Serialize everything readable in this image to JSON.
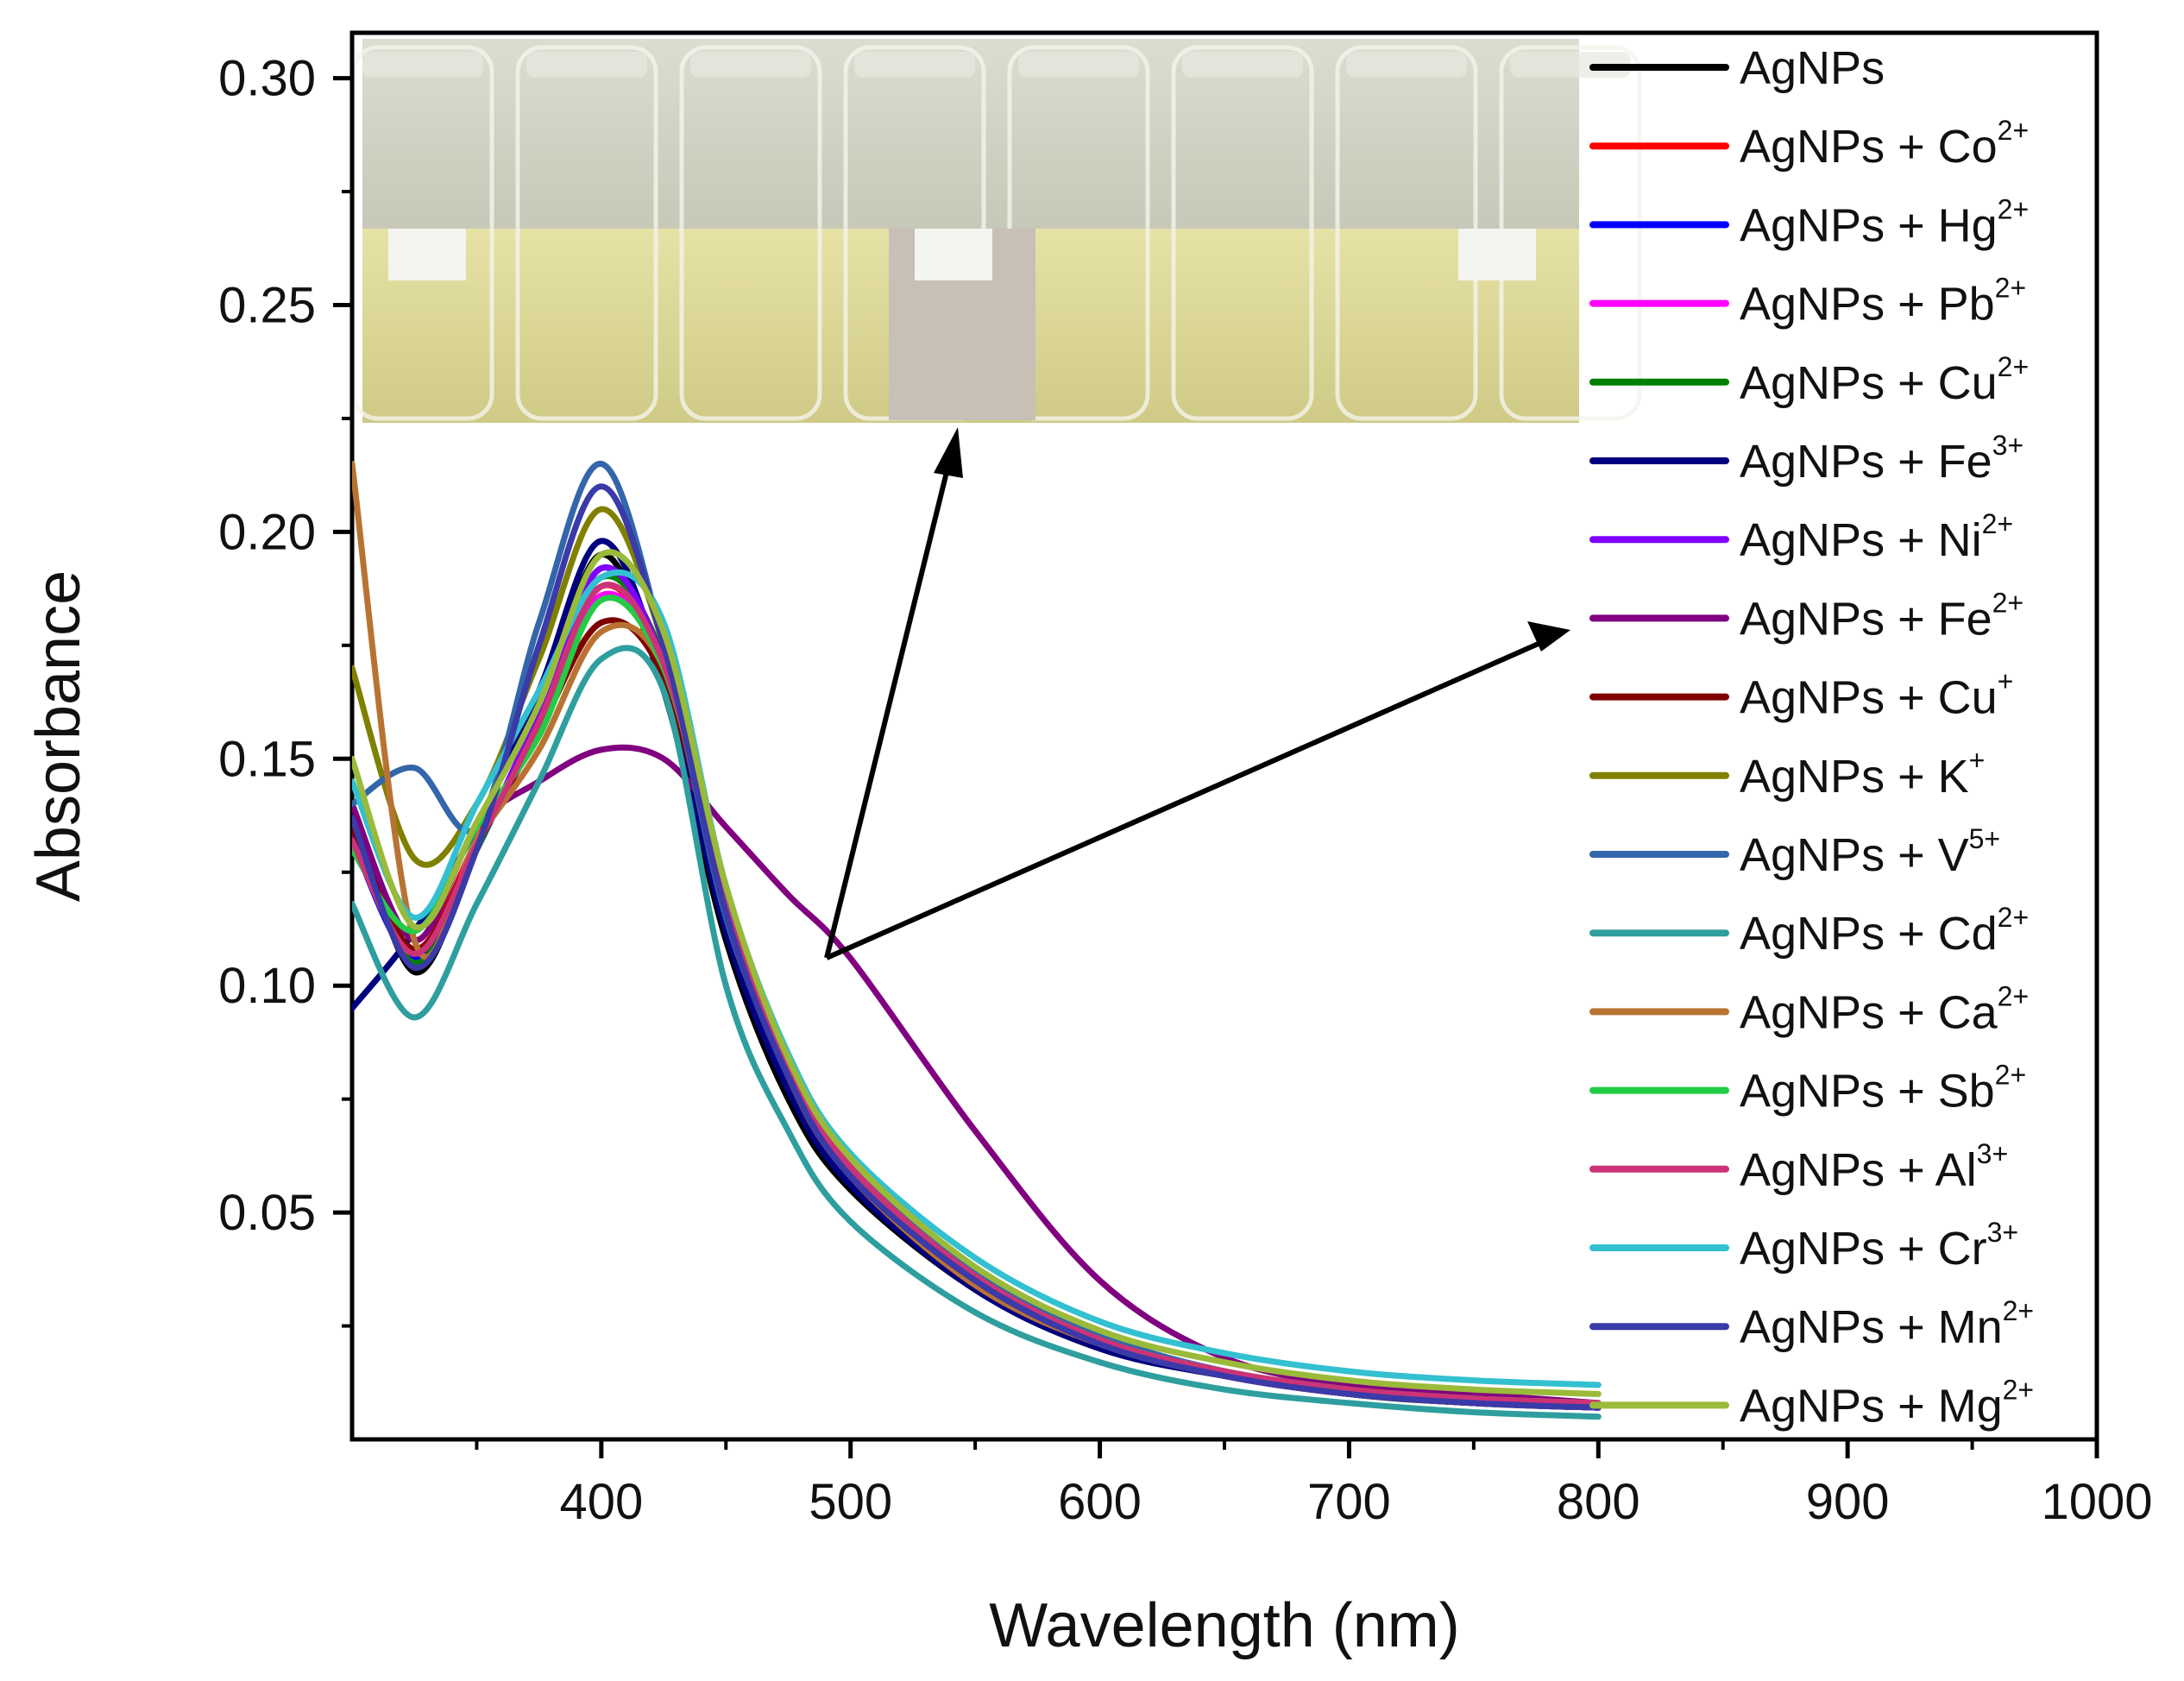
{
  "chart_data": {
    "type": "line",
    "title": "",
    "xlabel": "Wavelength (nm)",
    "ylabel": "Absorbance",
    "xlim": [
      300,
      1000
    ],
    "ylim": [
      0,
      0.31
    ],
    "xticks": [
      400,
      500,
      600,
      700,
      800,
      900,
      1000
    ],
    "xtick_labels": [
      "400",
      "500",
      "600",
      "700",
      "800",
      "900",
      "1000"
    ],
    "xminor": [
      350,
      450,
      550,
      650,
      750,
      850,
      950
    ],
    "yticks": [
      0.05,
      0.1,
      0.15,
      0.2,
      0.25,
      0.3
    ],
    "ytick_labels": [
      "0.05",
      "0.10",
      "0.15",
      "0.20",
      "0.25",
      "0.30"
    ],
    "yminor": [
      0.025,
      0.075,
      0.125,
      0.175,
      0.225,
      0.275
    ],
    "x": [
      300,
      325,
      350,
      375,
      400,
      425,
      450,
      475,
      500,
      550,
      600,
      650,
      700,
      750,
      800
    ],
    "series": [
      {
        "name": "AgNPs",
        "ion": "",
        "sup": "",
        "color": "#000000",
        "values": [
          0.14,
          0.103,
          0.13,
          0.16,
          0.195,
          0.165,
          0.11,
          0.075,
          0.055,
          0.033,
          0.02,
          0.014,
          0.01,
          0.008,
          0.007
        ]
      },
      {
        "name": "AgNPs + Co",
        "ion": "Co",
        "sup": "2+",
        "color": "#ff0000",
        "values": [
          0.135,
          0.108,
          0.132,
          0.158,
          0.188,
          0.17,
          0.118,
          0.08,
          0.058,
          0.034,
          0.021,
          0.014,
          0.01,
          0.008,
          0.007
        ]
      },
      {
        "name": "AgNPs + Hg",
        "ion": "Hg",
        "sup": "2+",
        "color": "#0000ff",
        "values": [
          0.132,
          0.106,
          0.13,
          0.16,
          0.192,
          0.17,
          0.116,
          0.079,
          0.057,
          0.034,
          0.021,
          0.014,
          0.01,
          0.008,
          0.007
        ]
      },
      {
        "name": "AgNPs + Pb",
        "ion": "Pb",
        "sup": "2+",
        "color": "#ff00ff",
        "values": [
          0.134,
          0.108,
          0.131,
          0.158,
          0.186,
          0.17,
          0.118,
          0.08,
          0.058,
          0.035,
          0.021,
          0.014,
          0.01,
          0.008,
          0.007
        ]
      },
      {
        "name": "AgNPs + Cu",
        "ion": "Cu",
        "sup": "2+",
        "color": "#008000",
        "values": [
          0.135,
          0.105,
          0.13,
          0.16,
          0.19,
          0.172,
          0.118,
          0.081,
          0.059,
          0.035,
          0.022,
          0.015,
          0.01,
          0.008,
          0.007
        ]
      },
      {
        "name": "AgNPs + Fe",
        "ion": "Fe",
        "sup": "3+",
        "color": "#000080",
        "values": [
          0.095,
          0.112,
          0.135,
          0.165,
          0.198,
          0.168,
          0.112,
          0.077,
          0.056,
          0.033,
          0.02,
          0.014,
          0.01,
          0.008,
          0.007
        ]
      },
      {
        "name": "AgNPs + Ni",
        "ion": "Ni",
        "sup": "2+",
        "color": "#8000ff",
        "values": [
          0.133,
          0.107,
          0.131,
          0.16,
          0.192,
          0.171,
          0.117,
          0.08,
          0.058,
          0.034,
          0.021,
          0.014,
          0.01,
          0.008,
          0.007
        ]
      },
      {
        "name": "AgNPs + Fe",
        "ion": "Fe",
        "sup": "2+",
        "color": "#800080",
        "values": [
          0.14,
          0.11,
          0.135,
          0.145,
          0.152,
          0.15,
          0.135,
          0.12,
          0.106,
          0.068,
          0.035,
          0.018,
          0.012,
          0.01,
          0.008
        ]
      },
      {
        "name": "AgNPs + Cu",
        "ion": "Cu",
        "sup": "+",
        "color": "#800000",
        "values": [
          0.135,
          0.108,
          0.131,
          0.156,
          0.18,
          0.168,
          0.118,
          0.081,
          0.058,
          0.034,
          0.021,
          0.014,
          0.01,
          0.008,
          0.007
        ]
      },
      {
        "name": "AgNPs + K",
        "ion": "K",
        "sup": "+",
        "color": "#808000",
        "values": [
          0.17,
          0.128,
          0.14,
          0.172,
          0.205,
          0.175,
          0.118,
          0.08,
          0.058,
          0.035,
          0.022,
          0.015,
          0.011,
          0.009,
          0.008
        ]
      },
      {
        "name": "AgNPs + V",
        "ion": "V",
        "sup": "5+",
        "color": "#3366aa",
        "values": [
          0.14,
          0.148,
          0.135,
          0.18,
          0.215,
          0.175,
          0.115,
          0.082,
          0.06,
          0.037,
          0.023,
          0.015,
          0.011,
          0.008,
          0.007
        ]
      },
      {
        "name": "AgNPs + Cd",
        "ion": "Cd",
        "sup": "2+",
        "color": "#2e9e9e",
        "values": [
          0.118,
          0.093,
          0.118,
          0.145,
          0.172,
          0.165,
          0.1,
          0.068,
          0.048,
          0.028,
          0.017,
          0.011,
          0.008,
          0.006,
          0.005
        ]
      },
      {
        "name": "AgNPs + Ca",
        "ion": "Ca",
        "sup": "2+",
        "color": "#b87333",
        "values": [
          0.215,
          0.11,
          0.132,
          0.152,
          0.178,
          0.17,
          0.118,
          0.08,
          0.058,
          0.034,
          0.021,
          0.014,
          0.01,
          0.008,
          0.007
        ]
      },
      {
        "name": "AgNPs + Sb",
        "ion": "Sb",
        "sup": "2+",
        "color": "#22cc44",
        "values": [
          0.13,
          0.112,
          0.135,
          0.155,
          0.185,
          0.17,
          0.12,
          0.082,
          0.06,
          0.036,
          0.022,
          0.015,
          0.011,
          0.009,
          0.008
        ]
      },
      {
        "name": "AgNPs + Al",
        "ion": "Al",
        "sup": "3+",
        "color": "#cc3377",
        "values": [
          0.132,
          0.107,
          0.131,
          0.158,
          0.188,
          0.171,
          0.119,
          0.082,
          0.06,
          0.036,
          0.022,
          0.015,
          0.011,
          0.009,
          0.008
        ]
      },
      {
        "name": "AgNPs + Cr",
        "ion": "Cr",
        "sup": "3+",
        "color": "#33c0d0",
        "values": [
          0.145,
          0.115,
          0.14,
          0.165,
          0.19,
          0.18,
          0.122,
          0.085,
          0.063,
          0.04,
          0.026,
          0.019,
          0.015,
          0.013,
          0.012
        ]
      },
      {
        "name": "AgNPs + Mn",
        "ion": "Mn",
        "sup": "2+",
        "color": "#3a3aa8",
        "values": [
          0.137,
          0.104,
          0.13,
          0.175,
          0.21,
          0.175,
          0.116,
          0.08,
          0.058,
          0.035,
          0.021,
          0.014,
          0.01,
          0.008,
          0.007
        ]
      },
      {
        "name": "AgNPs + Mg",
        "ion": "Mg",
        "sup": "2+",
        "color": "#9aba3a",
        "values": [
          0.15,
          0.113,
          0.136,
          0.162,
          0.195,
          0.178,
          0.122,
          0.084,
          0.062,
          0.038,
          0.024,
          0.017,
          0.013,
          0.011,
          0.01
        ]
      }
    ]
  }
}
